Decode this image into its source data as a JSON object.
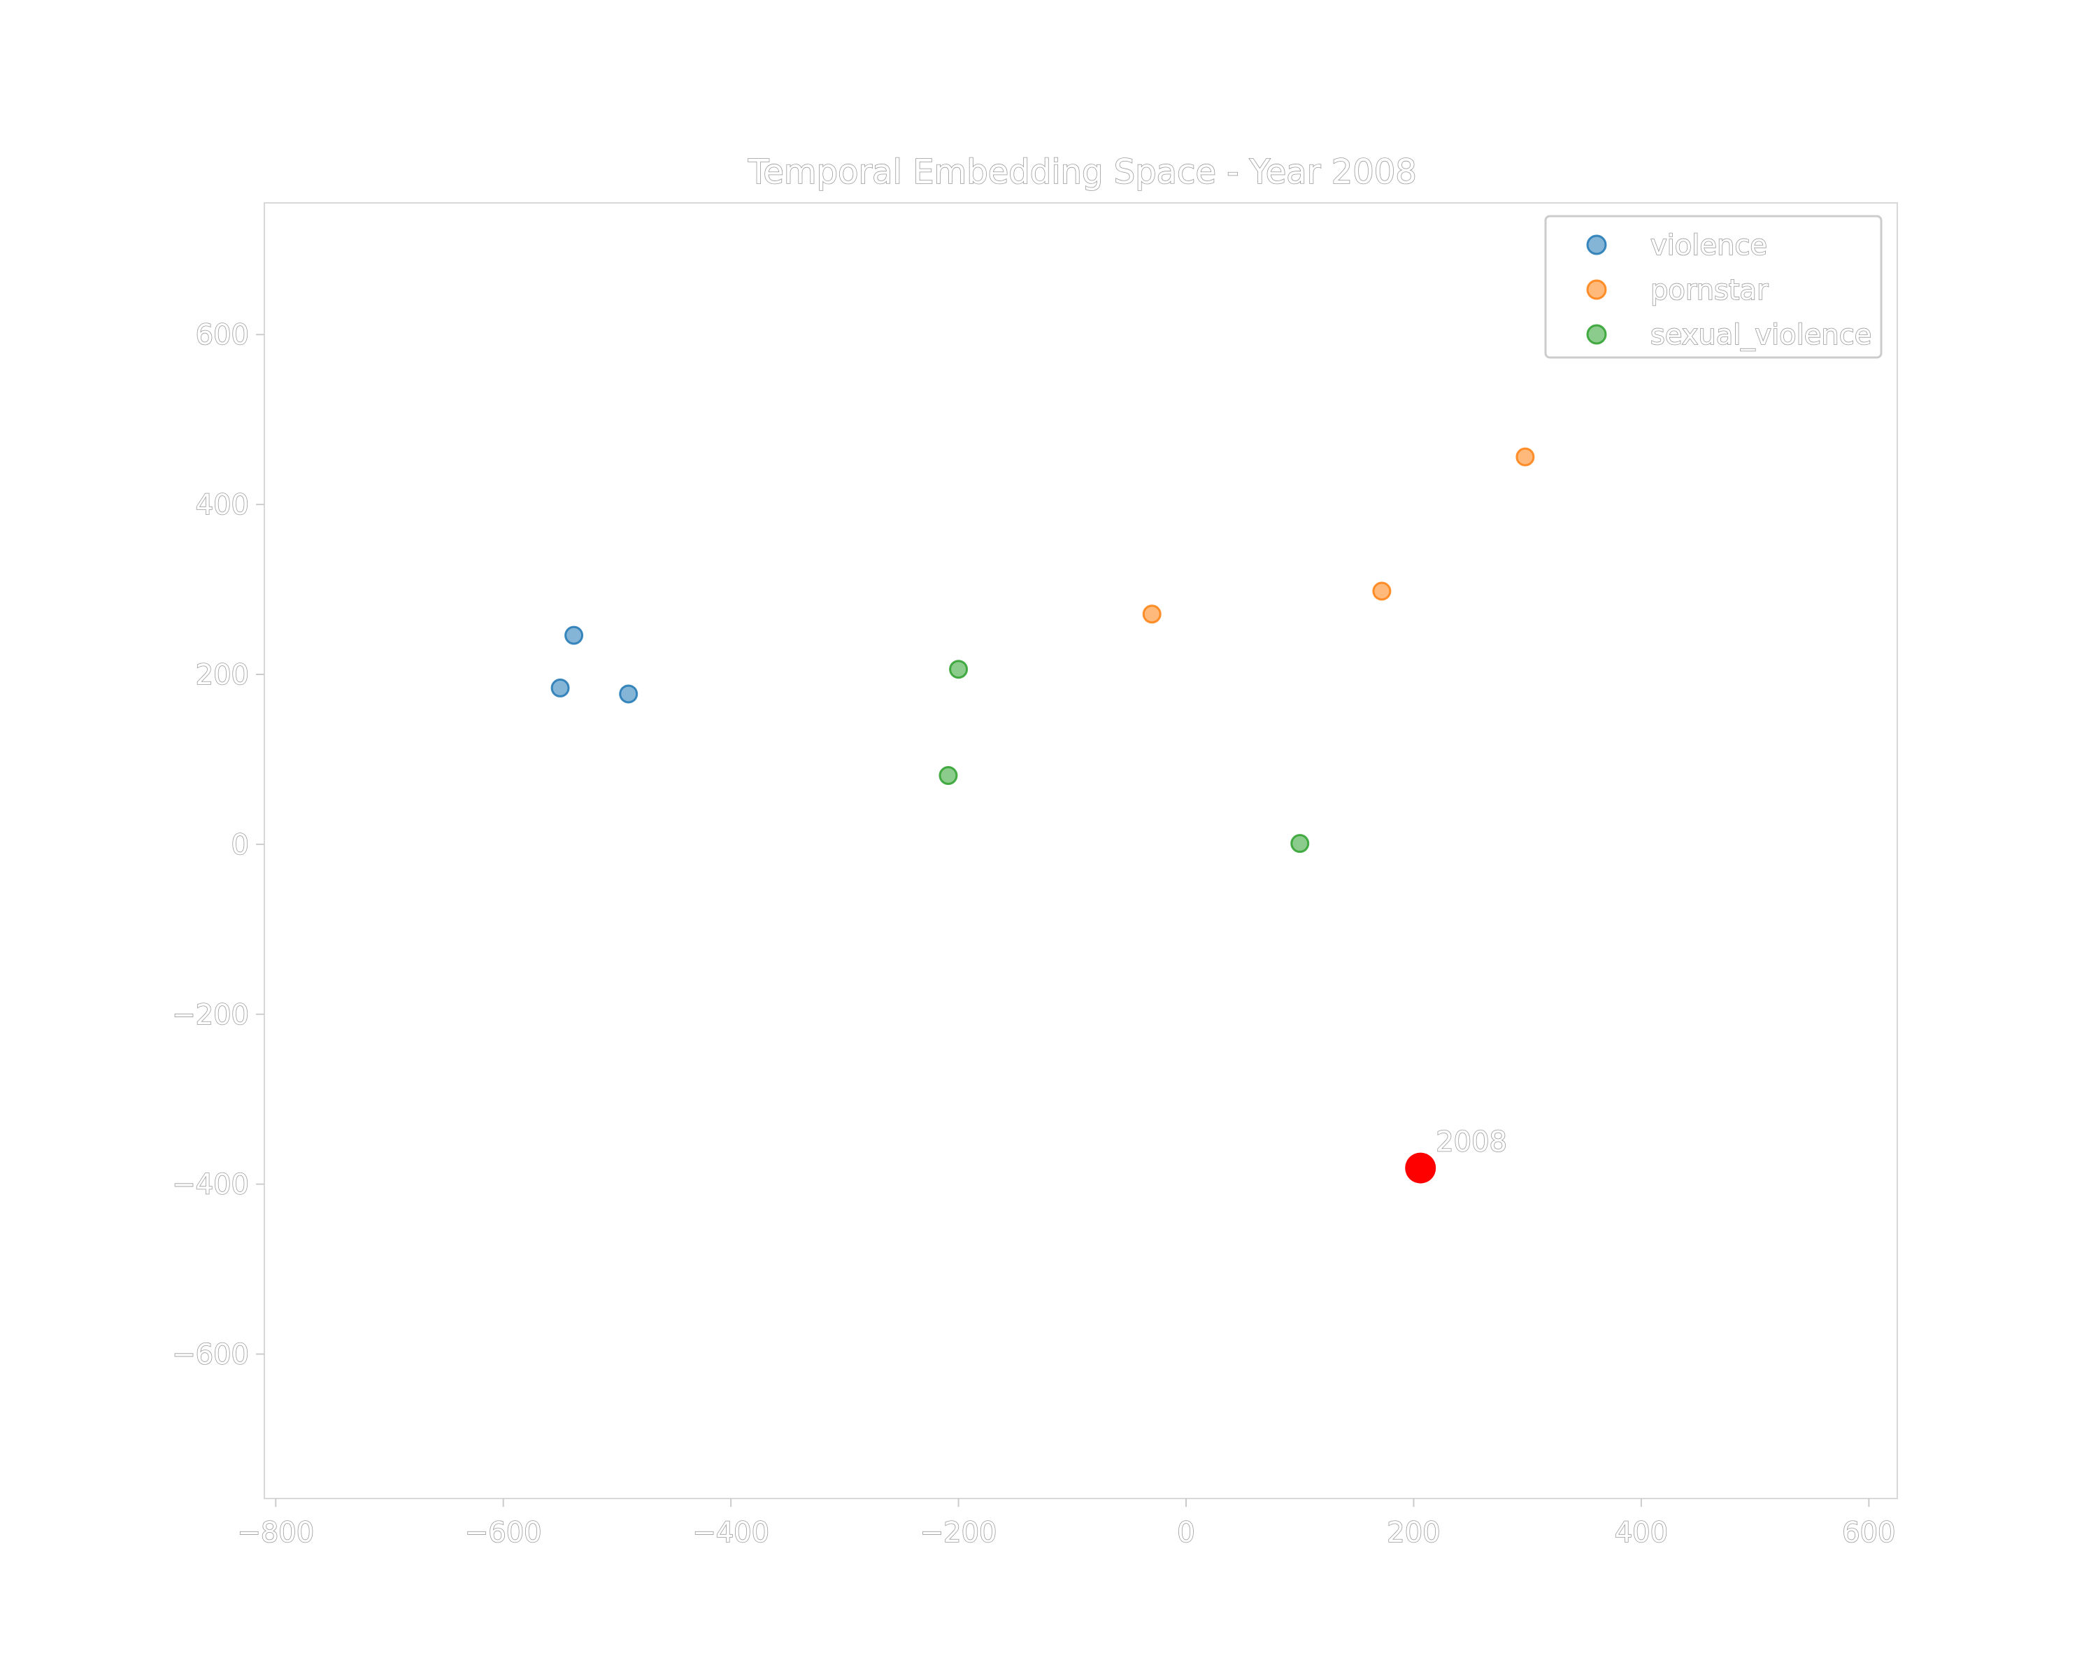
{
  "chart_data": {
    "type": "scatter",
    "title": "Temporal Embedding Space - Year 2008",
    "xlabel": "",
    "ylabel": "",
    "xlim": [
      -810,
      625
    ],
    "ylim": [
      -770,
      755
    ],
    "xticks": [
      -800,
      -600,
      -400,
      -200,
      0,
      200,
      400,
      600
    ],
    "yticks": [
      -600,
      -400,
      -200,
      0,
      200,
      400,
      600
    ],
    "xtick_labels": [
      "−800",
      "−600",
      "−400",
      "−200",
      "0",
      "200",
      "400",
      "600"
    ],
    "ytick_labels": [
      "−600",
      "−400",
      "−200",
      "0",
      "200",
      "400",
      "600"
    ],
    "grid": false,
    "legend_position": "top-right",
    "series": [
      {
        "name": "violence",
        "color": "#1f77b4",
        "points": [
          {
            "x": -538,
            "y": 246
          },
          {
            "x": -550,
            "y": 184
          },
          {
            "x": -490,
            "y": 177
          }
        ]
      },
      {
        "name": "pornstar",
        "color": "#ff7f0e",
        "points": [
          {
            "x": -30,
            "y": 271
          },
          {
            "x": 172,
            "y": 298
          },
          {
            "x": 298,
            "y": 456
          }
        ]
      },
      {
        "name": "sexual_violence",
        "color": "#2ca02c",
        "points": [
          {
            "x": -200,
            "y": 206
          },
          {
            "x": -209,
            "y": 81
          },
          {
            "x": 100,
            "y": 1
          }
        ]
      }
    ],
    "highlight": {
      "label": "2008",
      "x": 206,
      "y": -381,
      "color": "#ff0000"
    }
  }
}
